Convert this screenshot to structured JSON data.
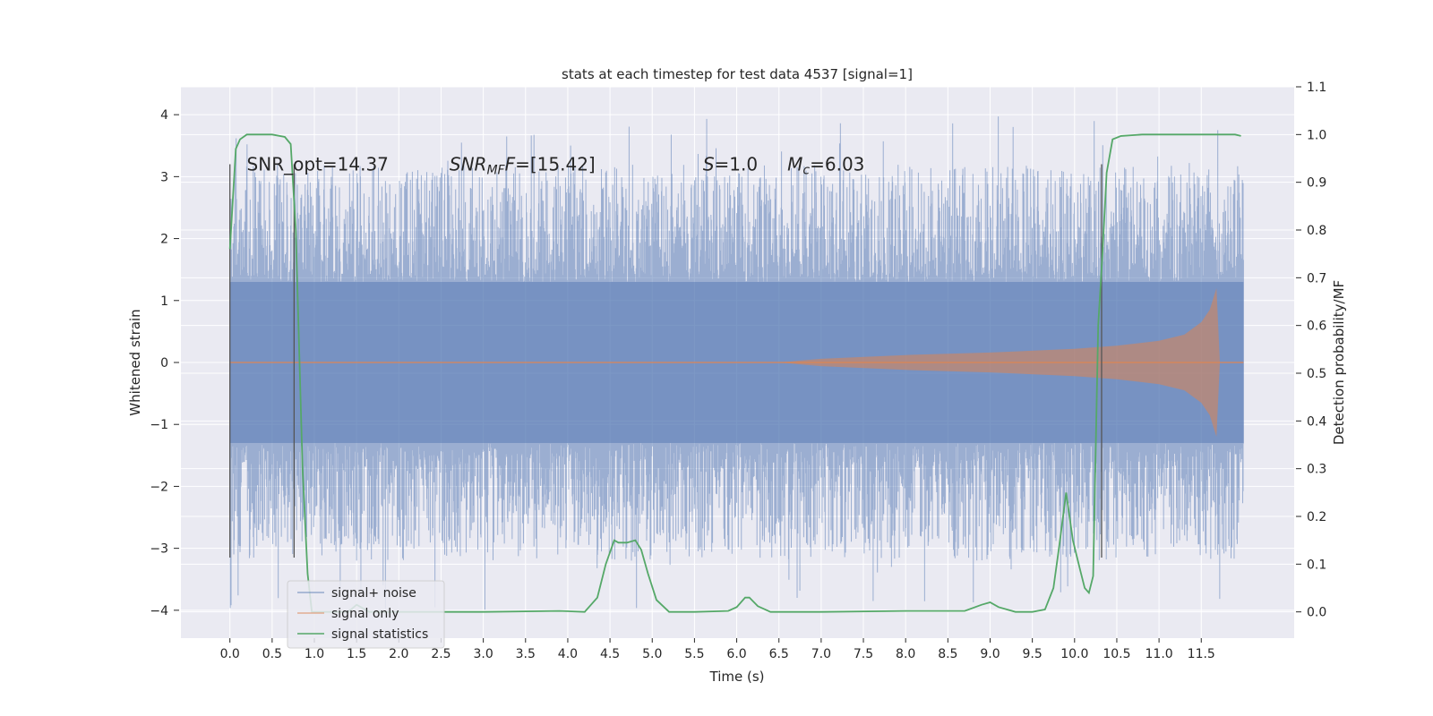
{
  "chart_data": {
    "type": "line",
    "title": "stats at each timestep for test data 4537 [signal=1]",
    "xlabel": "Time (s)",
    "ylabel": "Whitened strain",
    "y2label": "Detection probability/MF",
    "xlim": [
      -0.58,
      12.6
    ],
    "ylim": [
      -4.45,
      4.45
    ],
    "y2lim": [
      -0.055,
      1.1
    ],
    "x_ticks": [
      0.0,
      0.5,
      1.0,
      1.5,
      2.0,
      2.5,
      3.0,
      3.5,
      4.0,
      4.5,
      5.0,
      5.5,
      6.0,
      6.5,
      7.0,
      7.5,
      8.0,
      8.5,
      9.0,
      9.5,
      10.0,
      10.5,
      11.0,
      11.5
    ],
    "x_tick_labels": [
      "0.0",
      "0.5",
      "1.0",
      "1.5",
      "2.0",
      "2.5",
      "3.0",
      "3.5",
      "4.0",
      "4.5",
      "5.0",
      "5.5",
      "6.0",
      "6.5",
      "7.0",
      "7.5",
      "8.0",
      "8.5",
      "9.0",
      "9.5",
      "10.0",
      "10.5",
      "11.0",
      "11.5"
    ],
    "y_ticks": [
      -4,
      -3,
      -2,
      -1,
      0,
      1,
      2,
      3,
      4
    ],
    "y_tick_labels": [
      "−4",
      "−3",
      "−2",
      "−1",
      "0",
      "1",
      "2",
      "3",
      "4"
    ],
    "y2_ticks": [
      0.0,
      0.1,
      0.2,
      0.3,
      0.4,
      0.5,
      0.6,
      0.7,
      0.8,
      0.9,
      1.0,
      1.1
    ],
    "y2_tick_labels": [
      "0.0",
      "0.1",
      "0.2",
      "0.3",
      "0.4",
      "0.5",
      "0.6",
      "0.7",
      "0.8",
      "0.9",
      "1.0",
      "1.1"
    ],
    "grid": true,
    "legend_position": "lower-left",
    "annotations": [
      {
        "text": "SNR_opt=14.37",
        "x": 0.2,
        "y": 3.2
      },
      {
        "text": "SNR_MF=[15.42]",
        "x": 2.6,
        "y": 3.2
      },
      {
        "text": "S=1.0",
        "x": 5.6,
        "y": 3.2
      },
      {
        "text": "M_c=6.03",
        "x": 6.6,
        "y": 3.2
      }
    ],
    "vertical_markers": [
      0.0,
      0.76,
      10.32
    ],
    "marker_range": [
      -3.15,
      3.2
    ],
    "series": [
      {
        "name": "signal+ noise",
        "color": "#4c72b0",
        "axis": "left",
        "x_range": [
          0.0,
          12.0
        ],
        "envelope_core": [
          -1.3,
          1.3
        ],
        "envelope_spikes": [
          -4.0,
          4.1
        ]
      },
      {
        "name": "signal only",
        "color": "#dd8452",
        "axis": "left",
        "x": [
          0.0,
          6.5,
          7.0,
          8.0,
          9.0,
          10.0,
          10.5,
          11.0,
          11.3,
          11.5,
          11.6,
          11.68,
          11.72,
          12.0
        ],
        "upper": [
          0.0,
          0.0,
          0.06,
          0.12,
          0.16,
          0.22,
          0.27,
          0.35,
          0.45,
          0.65,
          0.85,
          1.2,
          0.0,
          0.0
        ],
        "lower": [
          0.0,
          0.0,
          -0.06,
          -0.12,
          -0.16,
          -0.22,
          -0.27,
          -0.35,
          -0.45,
          -0.65,
          -0.85,
          -1.2,
          0.0,
          0.0
        ]
      },
      {
        "name": "signal statistics",
        "color": "#55a868",
        "axis": "right",
        "x": [
          0.0,
          0.07,
          0.12,
          0.2,
          0.3,
          0.5,
          0.65,
          0.72,
          0.78,
          0.82,
          0.86,
          0.92,
          0.97,
          1.1,
          1.4,
          1.5,
          1.55,
          1.65,
          2.0,
          3.0,
          3.9,
          4.2,
          4.35,
          4.45,
          4.55,
          4.6,
          4.7,
          4.8,
          4.87,
          4.95,
          5.05,
          5.2,
          5.5,
          5.9,
          6.0,
          6.1,
          6.15,
          6.25,
          6.4,
          7.0,
          8.0,
          8.7,
          8.9,
          9.0,
          9.1,
          9.3,
          9.5,
          9.65,
          9.75,
          9.82,
          9.9,
          9.98,
          10.07,
          10.12,
          10.17,
          10.22,
          10.28,
          10.33,
          10.38,
          10.45,
          10.55,
          10.8,
          11.2,
          11.6,
          11.9,
          11.97
        ],
        "y": [
          0.76,
          0.97,
          0.99,
          1.0,
          1.0,
          1.0,
          0.995,
          0.98,
          0.8,
          0.55,
          0.3,
          0.08,
          0.0,
          0.0,
          0.0,
          0.015,
          0.01,
          0.0,
          0.0,
          0.0,
          0.002,
          0.0,
          0.03,
          0.1,
          0.15,
          0.145,
          0.145,
          0.15,
          0.13,
          0.08,
          0.025,
          0.0,
          0.0,
          0.002,
          0.01,
          0.03,
          0.03,
          0.012,
          0.0,
          0.0,
          0.002,
          0.002,
          0.015,
          0.02,
          0.01,
          0.0,
          0.0,
          0.005,
          0.05,
          0.14,
          0.25,
          0.15,
          0.085,
          0.05,
          0.04,
          0.075,
          0.6,
          0.75,
          0.92,
          0.99,
          0.997,
          1.0,
          1.0,
          1.0,
          1.0,
          0.997
        ]
      }
    ]
  }
}
